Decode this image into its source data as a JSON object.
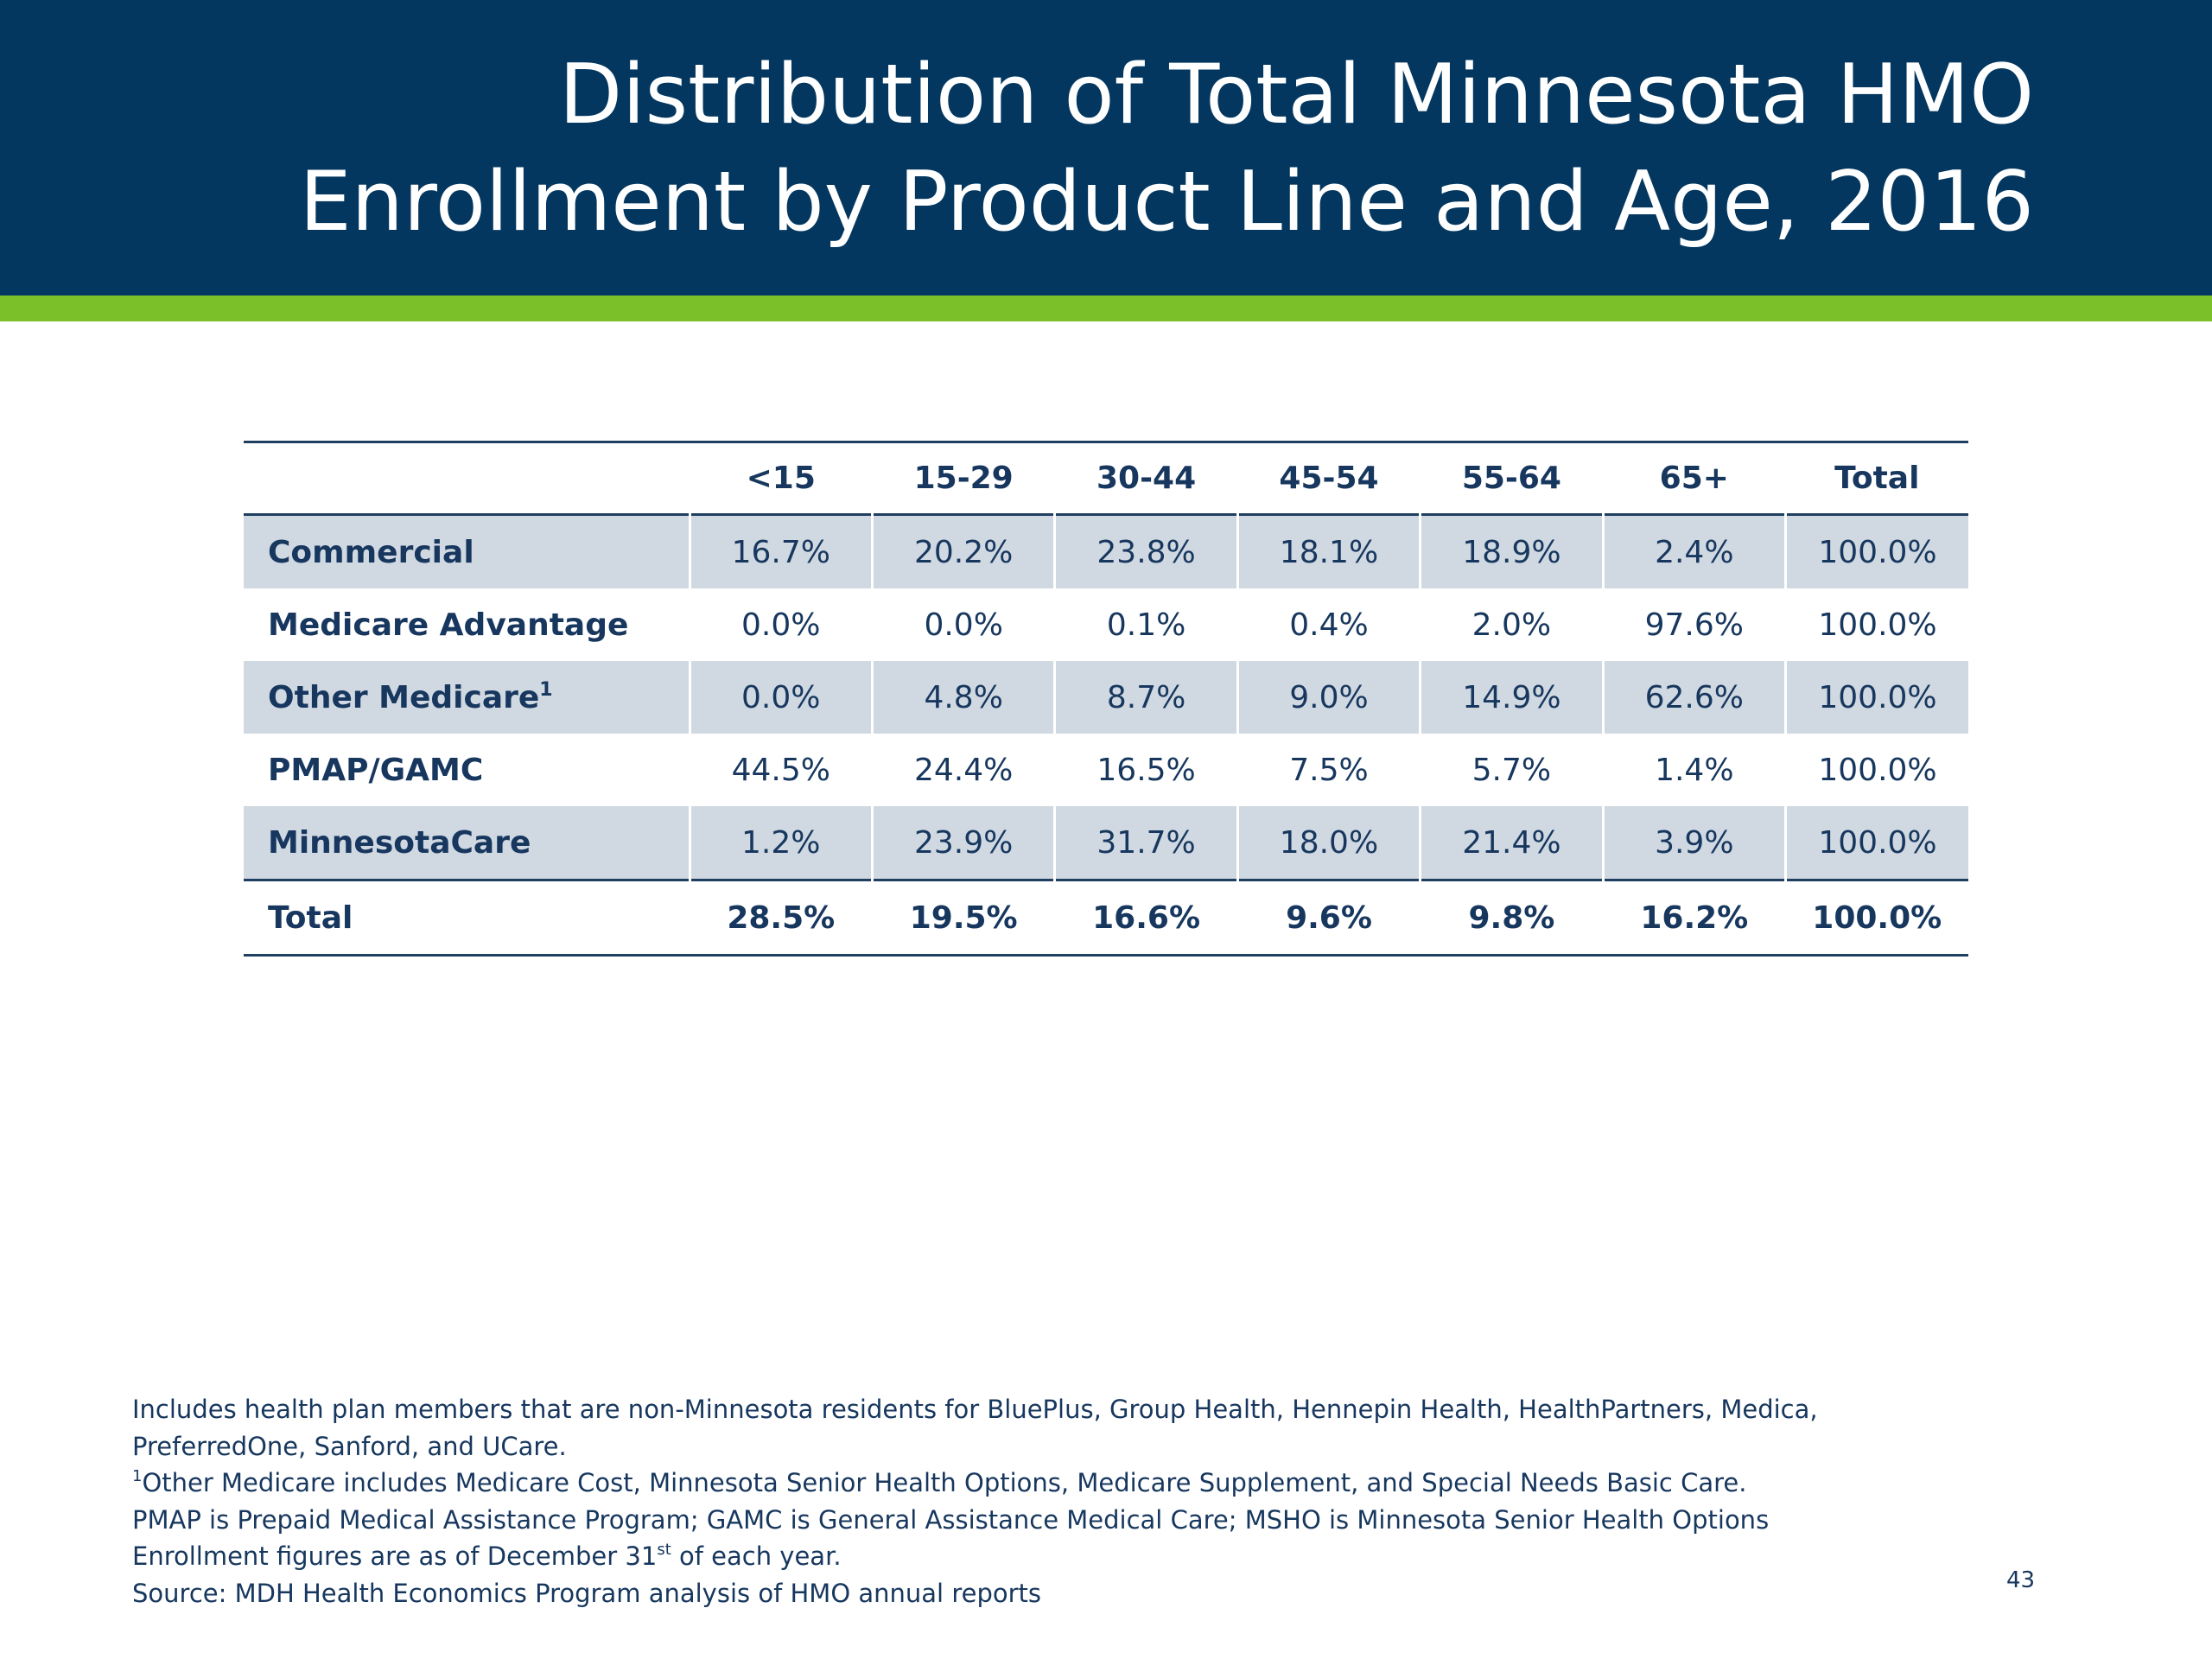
{
  "header": {
    "title_line1": "Distribution of Total Minnesota HMO",
    "title_line2": "Enrollment by Product Line and Age, 2016",
    "background_color": "#03375f",
    "accent_band_color": "#7bbf29"
  },
  "table": {
    "columns": [
      "<15",
      "15-29",
      "30-44",
      "45-54",
      "55-64",
      "65+",
      "Total"
    ],
    "rows": [
      {
        "label": "Commercial",
        "footnote": "",
        "values": [
          "16.7%",
          "20.2%",
          "23.8%",
          "18.1%",
          "18.9%",
          "2.4%",
          "100.0%"
        ]
      },
      {
        "label": "Medicare Advantage",
        "footnote": "",
        "values": [
          "0.0%",
          "0.0%",
          "0.1%",
          "0.4%",
          "2.0%",
          "97.6%",
          "100.0%"
        ]
      },
      {
        "label": "Other Medicare",
        "footnote": "1",
        "values": [
          "0.0%",
          "4.8%",
          "8.7%",
          "9.0%",
          "14.9%",
          "62.6%",
          "100.0%"
        ]
      },
      {
        "label": "PMAP/GAMC",
        "footnote": "",
        "values": [
          "44.5%",
          "24.4%",
          "16.5%",
          "7.5%",
          "5.7%",
          "1.4%",
          "100.0%"
        ]
      },
      {
        "label": "MinnesotaCare",
        "footnote": "",
        "values": [
          "1.2%",
          "23.9%",
          "31.7%",
          "18.0%",
          "21.4%",
          "3.9%",
          "100.0%"
        ]
      }
    ],
    "total_row": {
      "label": "Total",
      "values": [
        "28.5%",
        "19.5%",
        "16.6%",
        "9.6%",
        "9.8%",
        "16.2%",
        "100.0%"
      ]
    },
    "shaded_row_color": "#d0d9e2",
    "rule_color": "#1f3f62"
  },
  "notes": {
    "line1": "Includes health plan members that are non-Minnesota residents for BluePlus, Group Health, Hennepin Health, HealthPartners, Medica,",
    "line2": "PreferredOne, Sanford, and UCare.",
    "line3_marker": "1",
    "line3": "Other Medicare includes Medicare Cost, Minnesota Senior Health Options, Medicare Supplement, and Special Needs Basic Care.",
    "line4": "PMAP is Prepaid Medical Assistance Program; GAMC is General Assistance Medical Care; MSHO is Minnesota Senior Health Options",
    "line5_a": "Enrollment figures are as of December 31",
    "line5_sup": "st",
    "line5_b": " of each year.",
    "line6": "Source: MDH Health Economics Program analysis of HMO annual reports"
  },
  "page_number": "43"
}
